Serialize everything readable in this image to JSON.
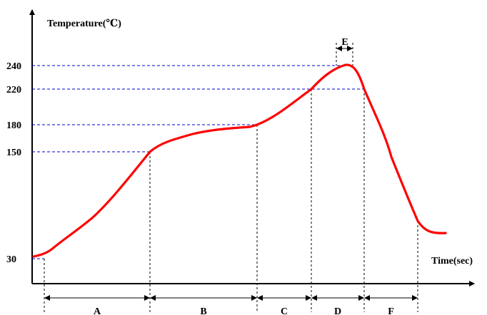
{
  "chart_data": {
    "type": "line",
    "ylabel": "Temperature(℃)",
    "xlabel": "Time(sec)",
    "y_ticks": [
      "240",
      "220",
      "180",
      "150",
      "30"
    ],
    "y_tick_values": [
      240,
      220,
      180,
      150,
      30
    ],
    "segments": [
      {
        "label": "A"
      },
      {
        "label": "B"
      },
      {
        "label": "C"
      },
      {
        "label": "D"
      },
      {
        "label": "F"
      }
    ],
    "peak_segment": {
      "label": "E"
    },
    "colors": {
      "curve": "#ff0000",
      "guides": "#0000cc",
      "axes": "#000000"
    }
  }
}
